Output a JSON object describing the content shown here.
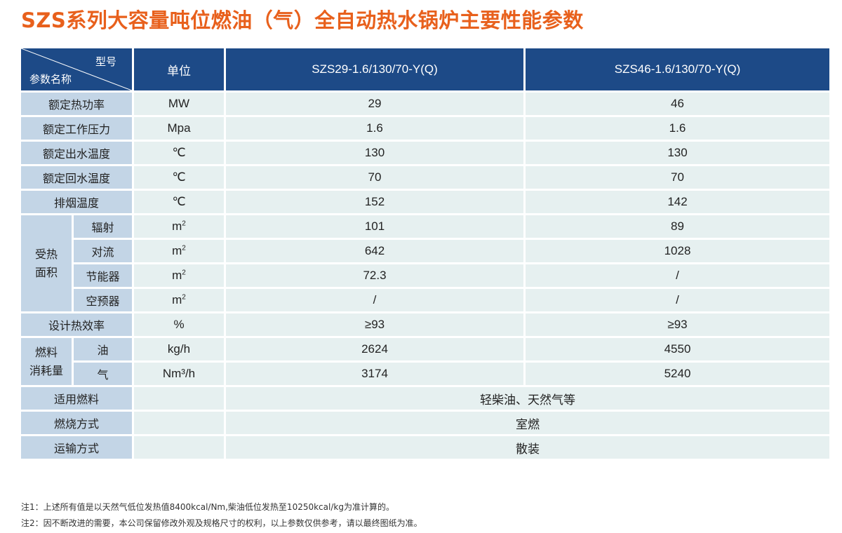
{
  "title": "SZS系列大容量吨位燃油（气）全自动热水锅炉主要性能参数",
  "header": {
    "model_label": "型号",
    "param_label": "参数名称",
    "unit_label": "单位",
    "model_1": "SZS29-1.6/130/70-Y(Q)",
    "model_2": "SZS46-1.6/130/70-Y(Q)"
  },
  "rows": {
    "rated_power": {
      "label": "额定热功率",
      "unit": "MW",
      "v1": "29",
      "v2": "46"
    },
    "rated_pressure": {
      "label": "额定工作压力",
      "unit": "Mpa",
      "v1": "1.6",
      "v2": "1.6"
    },
    "outlet_temp": {
      "label": "额定出水温度",
      "unit": "℃",
      "v1": "130",
      "v2": "130"
    },
    "return_temp": {
      "label": "额定回水温度",
      "unit": "℃",
      "v1": "70",
      "v2": "70"
    },
    "exhaust_temp": {
      "label": "排烟温度",
      "unit": "℃",
      "v1": "152",
      "v2": "142"
    }
  },
  "heating_area": {
    "label_line1": "受热",
    "label_line2": "面积",
    "unit_base": "m",
    "unit_exp": "2",
    "items": [
      {
        "label": "辐射",
        "v1": "101",
        "v2": "89"
      },
      {
        "label": "对流",
        "v1": "642",
        "v2": "1028"
      },
      {
        "label": "节能器",
        "v1": "72.3",
        "v2": "/"
      },
      {
        "label": "空预器",
        "v1": "/",
        "v2": "/"
      }
    ]
  },
  "efficiency": {
    "label": "设计热效率",
    "unit": "%",
    "v1": "≥93",
    "v2": "≥93"
  },
  "fuel_consumption": {
    "label_line1": "燃料",
    "label_line2": "消耗量",
    "oil": {
      "label": "油",
      "unit": "kg/h",
      "v1": "2624",
      "v2": "4550"
    },
    "gas": {
      "label": "气",
      "unit": "Nm³/h",
      "v1": "3174",
      "v2": "5240"
    }
  },
  "fuel_type": {
    "label": "适用燃料",
    "value": "轻柴油、天然气等"
  },
  "combustion": {
    "label": "燃烧方式",
    "value": "室燃"
  },
  "transport": {
    "label": "运输方式",
    "value": "散装"
  },
  "notes": [
    "注1：上述所有值是以天然气低位发热值8400kcal/Nm,柴油低位发热至10250kcal/kg为准计算的。",
    "注2：因不断改进的需要，本公司保留修改外观及规格尺寸的权利，以上参数仅供参考，请以最终图纸为准。"
  ]
}
